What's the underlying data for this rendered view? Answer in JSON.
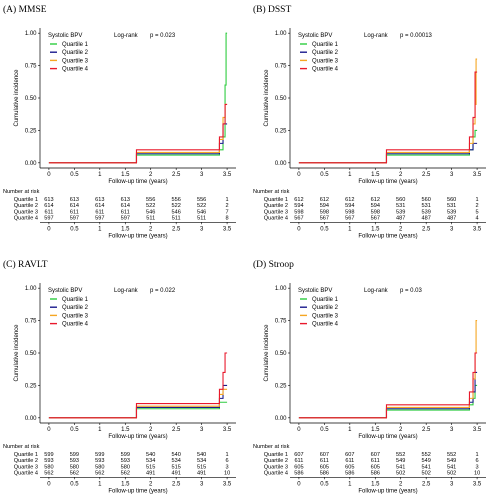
{
  "chart_data": [
    {
      "panel": "(A) MMSE",
      "type": "line",
      "xlabel": "Follow-up time (years)",
      "ylabel": "Cumulative incidence",
      "xlim": [
        0,
        3.5
      ],
      "ylim": [
        0,
        1.0
      ],
      "x_ticks": [
        "0",
        "0.5",
        "1",
        "1.5",
        "2",
        "2.5",
        "3",
        "3.5"
      ],
      "y_ticks": [
        "0.00",
        "0.25",
        "0.50",
        "0.75",
        "1.00"
      ],
      "legend_title": "Systolic BPV",
      "test_label": "Log-rank",
      "p_label": "p = 0.023",
      "series": [
        {
          "name": "Quartile 1",
          "color": "#2ecc40",
          "points": [
            [
              0,
              0.0
            ],
            [
              1.7,
              0.0
            ],
            [
              1.72,
              0.06
            ],
            [
              3.28,
              0.06
            ],
            [
              3.35,
              0.1
            ],
            [
              3.42,
              0.2
            ],
            [
              3.46,
              0.6
            ],
            [
              3.48,
              1.0
            ],
            [
              3.5,
              1.0
            ]
          ]
        },
        {
          "name": "Quartile 2",
          "color": "#1a1a8c",
          "points": [
            [
              0,
              0.0
            ],
            [
              1.7,
              0.0
            ],
            [
              1.72,
              0.07
            ],
            [
              3.28,
              0.07
            ],
            [
              3.35,
              0.15
            ],
            [
              3.42,
              0.3
            ],
            [
              3.46,
              0.3
            ],
            [
              3.5,
              0.3
            ]
          ]
        },
        {
          "name": "Quartile 3",
          "color": "#f5a623",
          "points": [
            [
              0,
              0.0
            ],
            [
              1.7,
              0.0
            ],
            [
              1.72,
              0.08
            ],
            [
              3.28,
              0.08
            ],
            [
              3.35,
              0.18
            ],
            [
              3.42,
              0.35
            ],
            [
              3.46,
              0.45
            ],
            [
              3.5,
              0.45
            ]
          ]
        },
        {
          "name": "Quartile 4",
          "color": "#e8192c",
          "points": [
            [
              0,
              0.0
            ],
            [
              1.7,
              0.0
            ],
            [
              1.72,
              0.1
            ],
            [
              3.28,
              0.1
            ],
            [
              3.35,
              0.2
            ],
            [
              3.42,
              0.3
            ],
            [
              3.46,
              0.45
            ],
            [
              3.5,
              0.45
            ]
          ]
        }
      ],
      "risk_table": {
        "title": "Number at risk",
        "rows": [
          {
            "label": "Quartile 1",
            "values": [
              "613",
              "613",
              "613",
              "613",
              "556",
              "556",
              "556",
              "1"
            ]
          },
          {
            "label": "Quartile 2",
            "values": [
              "614",
              "614",
              "614",
              "614",
              "522",
              "522",
              "522",
              "2"
            ]
          },
          {
            "label": "Quartile 3",
            "values": [
              "611",
              "611",
              "611",
              "611",
              "546",
              "546",
              "546",
              "7"
            ]
          },
          {
            "label": "Quartile 4",
            "values": [
              "597",
              "597",
              "597",
              "597",
              "511",
              "511",
              "511",
              "8"
            ]
          }
        ]
      }
    },
    {
      "panel": "(B) DSST",
      "type": "line",
      "xlabel": "Follow-up time (years)",
      "ylabel": "Cumulative incidence",
      "xlim": [
        0,
        3.5
      ],
      "ylim": [
        0,
        1.0
      ],
      "x_ticks": [
        "0",
        "0.5",
        "1",
        "1.5",
        "2",
        "2.5",
        "3",
        "3.5"
      ],
      "y_ticks": [
        "0.00",
        "0.25",
        "0.50",
        "0.75",
        "1.00"
      ],
      "legend_title": "Systolic BPV",
      "test_label": "Log-rank",
      "p_label": "p = 0.00013",
      "series": [
        {
          "name": "Quartile 1",
          "color": "#2ecc40",
          "points": [
            [
              0,
              0.0
            ],
            [
              1.7,
              0.0
            ],
            [
              1.72,
              0.06
            ],
            [
              3.28,
              0.06
            ],
            [
              3.35,
              0.1
            ],
            [
              3.42,
              0.2
            ],
            [
              3.46,
              0.25
            ],
            [
              3.5,
              0.25
            ]
          ]
        },
        {
          "name": "Quartile 2",
          "color": "#1a1a8c",
          "points": [
            [
              0,
              0.0
            ],
            [
              1.7,
              0.0
            ],
            [
              1.72,
              0.07
            ],
            [
              3.28,
              0.07
            ],
            [
              3.35,
              0.1
            ],
            [
              3.42,
              0.15
            ],
            [
              3.5,
              0.15
            ]
          ]
        },
        {
          "name": "Quartile 3",
          "color": "#f5a623",
          "points": [
            [
              0,
              0.0
            ],
            [
              1.7,
              0.0
            ],
            [
              1.72,
              0.08
            ],
            [
              3.28,
              0.08
            ],
            [
              3.35,
              0.15
            ],
            [
              3.42,
              0.3
            ],
            [
              3.46,
              0.45
            ],
            [
              3.48,
              0.8
            ],
            [
              3.5,
              0.8
            ]
          ]
        },
        {
          "name": "Quartile 4",
          "color": "#e8192c",
          "points": [
            [
              0,
              0.0
            ],
            [
              1.7,
              0.0
            ],
            [
              1.72,
              0.1
            ],
            [
              3.28,
              0.1
            ],
            [
              3.35,
              0.2
            ],
            [
              3.42,
              0.35
            ],
            [
              3.46,
              0.7
            ],
            [
              3.5,
              0.7
            ]
          ]
        }
      ],
      "risk_table": {
        "title": "Number at risk",
        "rows": [
          {
            "label": "Quartile 1",
            "values": [
              "612",
              "612",
              "612",
              "612",
              "560",
              "560",
              "560",
              "1"
            ]
          },
          {
            "label": "Quartile 2",
            "values": [
              "594",
              "594",
              "594",
              "594",
              "531",
              "531",
              "531",
              "2"
            ]
          },
          {
            "label": "Quartile 3",
            "values": [
              "598",
              "598",
              "598",
              "598",
              "539",
              "539",
              "539",
              "5"
            ]
          },
          {
            "label": "Quartile 4",
            "values": [
              "567",
              "567",
              "567",
              "567",
              "487",
              "487",
              "487",
              "4"
            ]
          }
        ]
      }
    },
    {
      "panel": "(C) RAVLT",
      "type": "line",
      "xlabel": "Follow-up time (years)",
      "ylabel": "Cumulative incidence",
      "xlim": [
        0,
        3.5
      ],
      "ylim": [
        0,
        1.0
      ],
      "x_ticks": [
        "0",
        "0.5",
        "1",
        "1.5",
        "2",
        "2.5",
        "3",
        "3.5"
      ],
      "y_ticks": [
        "0.00",
        "0.25",
        "0.50",
        "0.75",
        "1.00"
      ],
      "legend_title": "Systolic BPV",
      "test_label": "Log-rank",
      "p_label": "p = 0.022",
      "series": [
        {
          "name": "Quartile 1",
          "color": "#2ecc40",
          "points": [
            [
              0,
              0.0
            ],
            [
              1.7,
              0.0
            ],
            [
              1.72,
              0.07
            ],
            [
              3.28,
              0.07
            ],
            [
              3.35,
              0.12
            ],
            [
              3.42,
              0.12
            ],
            [
              3.5,
              0.12
            ]
          ]
        },
        {
          "name": "Quartile 2",
          "color": "#1a1a8c",
          "points": [
            [
              0,
              0.0
            ],
            [
              1.7,
              0.0
            ],
            [
              1.72,
              0.08
            ],
            [
              3.28,
              0.08
            ],
            [
              3.35,
              0.15
            ],
            [
              3.42,
              0.25
            ],
            [
              3.5,
              0.25
            ]
          ]
        },
        {
          "name": "Quartile 3",
          "color": "#f5a623",
          "points": [
            [
              0,
              0.0
            ],
            [
              1.7,
              0.0
            ],
            [
              1.72,
              0.09
            ],
            [
              3.28,
              0.09
            ],
            [
              3.35,
              0.18
            ],
            [
              3.42,
              0.22
            ],
            [
              3.5,
              0.22
            ]
          ]
        },
        {
          "name": "Quartile 4",
          "color": "#e8192c",
          "points": [
            [
              0,
              0.0
            ],
            [
              1.7,
              0.0
            ],
            [
              1.72,
              0.11
            ],
            [
              3.28,
              0.11
            ],
            [
              3.35,
              0.22
            ],
            [
              3.42,
              0.35
            ],
            [
              3.46,
              0.5
            ],
            [
              3.5,
              0.5
            ]
          ]
        }
      ],
      "risk_table": {
        "title": "Number at risk",
        "rows": [
          {
            "label": "Quartile 1",
            "values": [
              "599",
              "599",
              "599",
              "599",
              "540",
              "540",
              "540",
              "1"
            ]
          },
          {
            "label": "Quartile 2",
            "values": [
              "593",
              "593",
              "593",
              "593",
              "534",
              "534",
              "534",
              "6"
            ]
          },
          {
            "label": "Quartile 3",
            "values": [
              "580",
              "580",
              "580",
              "580",
              "515",
              "515",
              "515",
              "3"
            ]
          },
          {
            "label": "Quartile 4",
            "values": [
              "562",
              "562",
              "562",
              "562",
              "491",
              "491",
              "491",
              "10"
            ]
          }
        ]
      }
    },
    {
      "panel": "(D) Stroop",
      "type": "line",
      "xlabel": "Follow-up time (years)",
      "ylabel": "Cumulative incidence",
      "xlim": [
        0,
        3.5
      ],
      "ylim": [
        0,
        1.0
      ],
      "x_ticks": [
        "0",
        "0.5",
        "1",
        "1.5",
        "2",
        "2.5",
        "3",
        "3.5"
      ],
      "y_ticks": [
        "0.00",
        "0.25",
        "0.50",
        "0.75",
        "1.00"
      ],
      "legend_title": "Systolic BPV",
      "test_label": "Log-rank",
      "p_label": "p = 0.03",
      "series": [
        {
          "name": "Quartile 1",
          "color": "#2ecc40",
          "points": [
            [
              0,
              0.0
            ],
            [
              1.7,
              0.0
            ],
            [
              1.72,
              0.06
            ],
            [
              3.28,
              0.06
            ],
            [
              3.35,
              0.1
            ],
            [
              3.42,
              0.15
            ],
            [
              3.46,
              0.25
            ],
            [
              3.5,
              0.25
            ]
          ]
        },
        {
          "name": "Quartile 2",
          "color": "#1a1a8c",
          "points": [
            [
              0,
              0.0
            ],
            [
              1.7,
              0.0
            ],
            [
              1.72,
              0.07
            ],
            [
              3.28,
              0.07
            ],
            [
              3.35,
              0.12
            ],
            [
              3.42,
              0.2
            ],
            [
              3.46,
              0.35
            ],
            [
              3.5,
              0.35
            ]
          ]
        },
        {
          "name": "Quartile 3",
          "color": "#f5a623",
          "points": [
            [
              0,
              0.0
            ],
            [
              1.7,
              0.0
            ],
            [
              1.72,
              0.08
            ],
            [
              3.28,
              0.08
            ],
            [
              3.35,
              0.15
            ],
            [
              3.42,
              0.3
            ],
            [
              3.46,
              0.5
            ],
            [
              3.48,
              0.75
            ],
            [
              3.5,
              0.75
            ]
          ]
        },
        {
          "name": "Quartile 4",
          "color": "#e8192c",
          "points": [
            [
              0,
              0.0
            ],
            [
              1.7,
              0.0
            ],
            [
              1.72,
              0.1
            ],
            [
              3.28,
              0.1
            ],
            [
              3.35,
              0.2
            ],
            [
              3.42,
              0.35
            ],
            [
              3.46,
              0.5
            ],
            [
              3.5,
              0.5
            ]
          ]
        }
      ],
      "risk_table": {
        "title": "Number at risk",
        "rows": [
          {
            "label": "Quartile 1",
            "values": [
              "607",
              "607",
              "607",
              "607",
              "552",
              "552",
              "552",
              "1"
            ]
          },
          {
            "label": "Quartile 2",
            "values": [
              "611",
              "611",
              "611",
              "611",
              "549",
              "549",
              "549",
              "6"
            ]
          },
          {
            "label": "Quartile 3",
            "values": [
              "605",
              "605",
              "605",
              "605",
              "541",
              "541",
              "541",
              "3"
            ]
          },
          {
            "label": "Quartile 4",
            "values": [
              "586",
              "586",
              "586",
              "586",
              "502",
              "502",
              "502",
              "10"
            ]
          }
        ]
      }
    }
  ]
}
